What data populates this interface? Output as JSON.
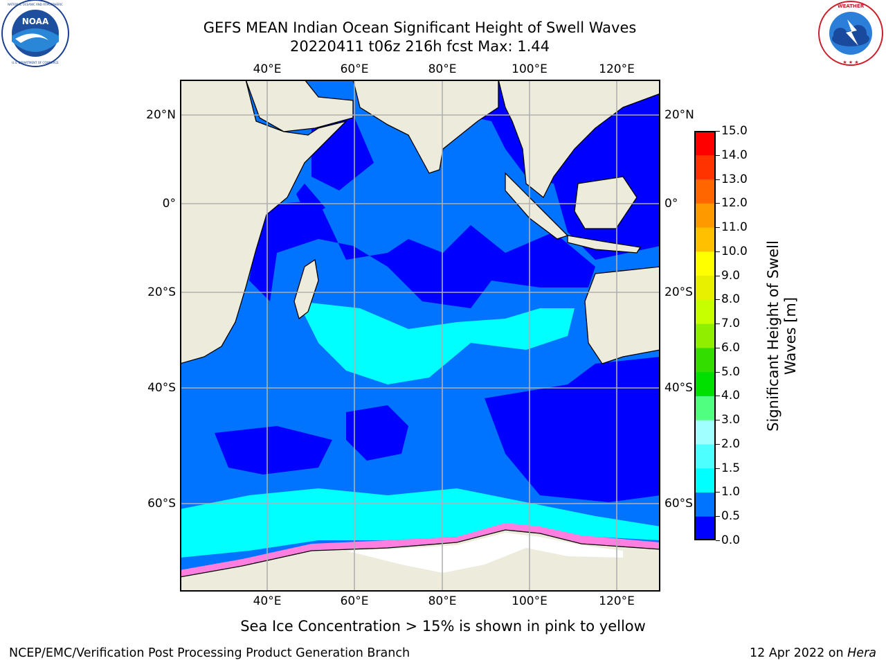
{
  "title": {
    "line1": "GEFS MEAN Indian Ocean Significant Height of Swell Waves",
    "line2": "20220411 t06z 216h fcst   Max: 1.44"
  },
  "logos": {
    "left": {
      "name": "noaa-logo",
      "text": "NOAA",
      "ring_text": "NATIONAL OCEANIC AND ATMOSPHERIC ADMINISTRATION · U.S. DEPARTMENT OF COMMERCE"
    },
    "right": {
      "name": "nws-logo",
      "ring_text": "NATIONAL WEATHER SERVICE"
    }
  },
  "map": {
    "lon_labels": [
      "40°E",
      "60°E",
      "80°E",
      "100°E",
      "120°E"
    ],
    "lat_labels": [
      "20°N",
      "0°",
      "20°S",
      "40°S",
      "60°S"
    ],
    "colors": {
      "land": "#ecebdc",
      "ice": "#ffffff",
      "grid": "#b0b0b0",
      "coast": "#000000"
    }
  },
  "colorbar": {
    "label": "Significant Height of Swell Waves [m]",
    "ticks": [
      "0.0",
      "0.5",
      "1.0",
      "1.5",
      "2.0",
      "3.0",
      "4.0",
      "5.0",
      "6.0",
      "7.0",
      "8.0",
      "9.0",
      "10.0",
      "11.0",
      "12.0",
      "13.0",
      "14.0",
      "15.0"
    ],
    "colors": [
      "#0000ff",
      "#0073ff",
      "#00ffff",
      "#4dffff",
      "#a0ffff",
      "#50ff80",
      "#00e000",
      "#33dd00",
      "#90ee00",
      "#c8ff00",
      "#e8f000",
      "#ffff00",
      "#ffc000",
      "#ff9900",
      "#ff6600",
      "#ff3300",
      "#ff0000"
    ]
  },
  "ice_note": "Sea Ice Concentration > 15% is shown in pink to yellow",
  "footer": {
    "left": "NCEP/EMC/Verification Post Processing Product Generation Branch",
    "right_prefix": "12 Apr 2022 on ",
    "right_host": "Hera"
  }
}
